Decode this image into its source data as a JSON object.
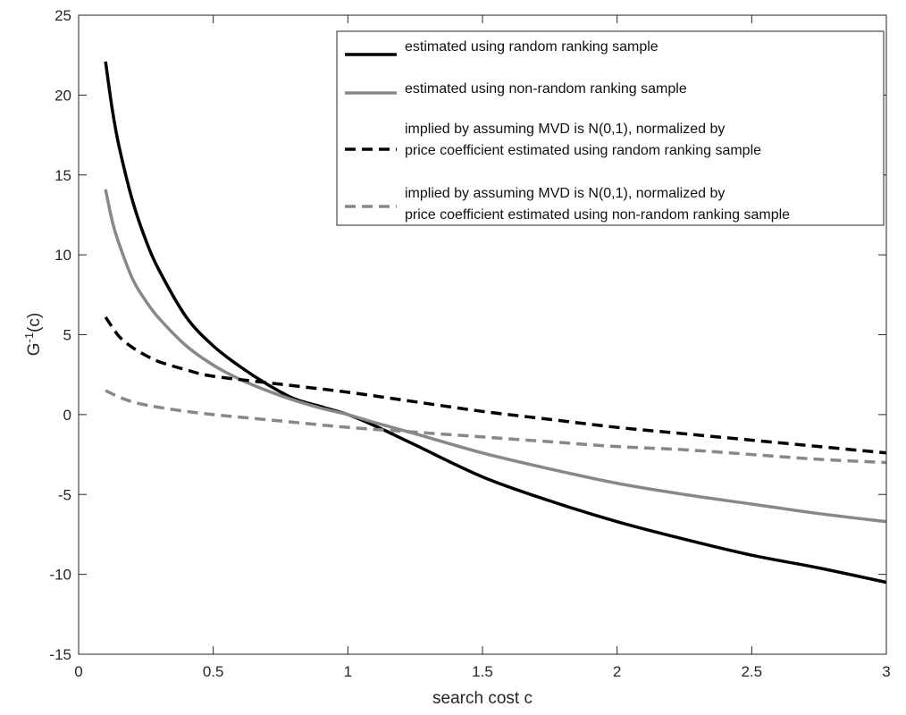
{
  "chart_data": {
    "type": "line",
    "title": "",
    "xlabel": "search cost c",
    "ylabel": "G",
    "ylabel_sup": "-1",
    "ylabel_suffix": "(c)",
    "xlim": [
      0,
      3
    ],
    "ylim": [
      -15,
      25
    ],
    "xticks": [
      0,
      0.5,
      1,
      1.5,
      2,
      2.5,
      3
    ],
    "xtick_labels": [
      "0",
      "0.5",
      "1",
      "1.5",
      "2",
      "2.5",
      "3"
    ],
    "yticks": [
      -15,
      -10,
      -5,
      0,
      5,
      10,
      15,
      20,
      25
    ],
    "ytick_labels": [
      "-15",
      "-10",
      "-5",
      "0",
      "5",
      "10",
      "15",
      "20",
      "25"
    ],
    "grid": false,
    "legend_position": "top-right",
    "series": [
      {
        "name": "estimated using random ranking sample",
        "color": "#000000",
        "dash": "solid",
        "x": [
          0.1,
          0.125,
          0.15,
          0.2,
          0.25,
          0.3,
          0.4,
          0.5,
          0.6,
          0.7,
          0.8,
          0.9,
          1.0,
          1.1,
          1.25,
          1.5,
          1.75,
          2.0,
          2.25,
          2.5,
          2.75,
          3.0
        ],
        "y": [
          22.1,
          19.1,
          16.8,
          13.4,
          10.9,
          9.0,
          6.1,
          4.3,
          3.0,
          1.9,
          1.0,
          0.5,
          0.0,
          -0.7,
          -1.9,
          -3.9,
          -5.4,
          -6.7,
          -7.8,
          -8.8,
          -9.6,
          -10.5
        ]
      },
      {
        "name": "estimated using non-random ranking sample",
        "color": "#888888",
        "dash": "solid",
        "x": [
          0.1,
          0.125,
          0.15,
          0.2,
          0.25,
          0.3,
          0.4,
          0.5,
          0.6,
          0.7,
          0.8,
          0.9,
          1.0,
          1.1,
          1.25,
          1.5,
          1.75,
          2.0,
          2.25,
          2.5,
          2.75,
          3.0
        ],
        "y": [
          14.1,
          12.1,
          10.7,
          8.5,
          7.1,
          6.0,
          4.3,
          3.1,
          2.2,
          1.5,
          0.9,
          0.4,
          0.0,
          -0.5,
          -1.2,
          -2.4,
          -3.4,
          -4.3,
          -5.0,
          -5.6,
          -6.2,
          -6.7
        ]
      },
      {
        "name": "implied by assuming MVD is N(0,1), normalized by price coefficient estimated using random ranking sample",
        "color": "#000000",
        "dash": "dashed",
        "x": [
          0.1,
          0.15,
          0.2,
          0.25,
          0.3,
          0.4,
          0.5,
          0.75,
          1.0,
          1.25,
          1.5,
          1.75,
          2.0,
          2.25,
          2.5,
          2.75,
          3.0
        ],
        "y": [
          6.1,
          4.9,
          4.2,
          3.7,
          3.3,
          2.8,
          2.4,
          1.9,
          1.4,
          0.8,
          0.2,
          -0.3,
          -0.8,
          -1.2,
          -1.6,
          -2.0,
          -2.4
        ]
      },
      {
        "name": "implied by assuming MVD is N(0,1), normalized by price coefficient estimated using non-random ranking sample",
        "color": "#888888",
        "dash": "dashed",
        "x": [
          0.1,
          0.15,
          0.2,
          0.25,
          0.3,
          0.4,
          0.5,
          0.75,
          1.0,
          1.25,
          1.5,
          1.75,
          2.0,
          2.25,
          2.5,
          2.75,
          3.0
        ],
        "y": [
          1.5,
          1.1,
          0.8,
          0.6,
          0.45,
          0.2,
          0.0,
          -0.4,
          -0.8,
          -1.1,
          -1.4,
          -1.7,
          -2.0,
          -2.2,
          -2.5,
          -2.8,
          -3.0
        ]
      }
    ],
    "legend": [
      {
        "lines": [
          "estimated using random ranking sample"
        ],
        "series": 0
      },
      {
        "lines": [
          "estimated using non-random ranking sample"
        ],
        "series": 1
      },
      {
        "lines": [
          "implied by assuming MVD is N(0,1), normalized by",
          "price coefficient estimated using random ranking sample"
        ],
        "series": 2
      },
      {
        "lines": [
          "implied by assuming MVD is N(0,1), normalized by",
          "price coefficient estimated using non-random ranking sample"
        ],
        "series": 3
      }
    ]
  }
}
